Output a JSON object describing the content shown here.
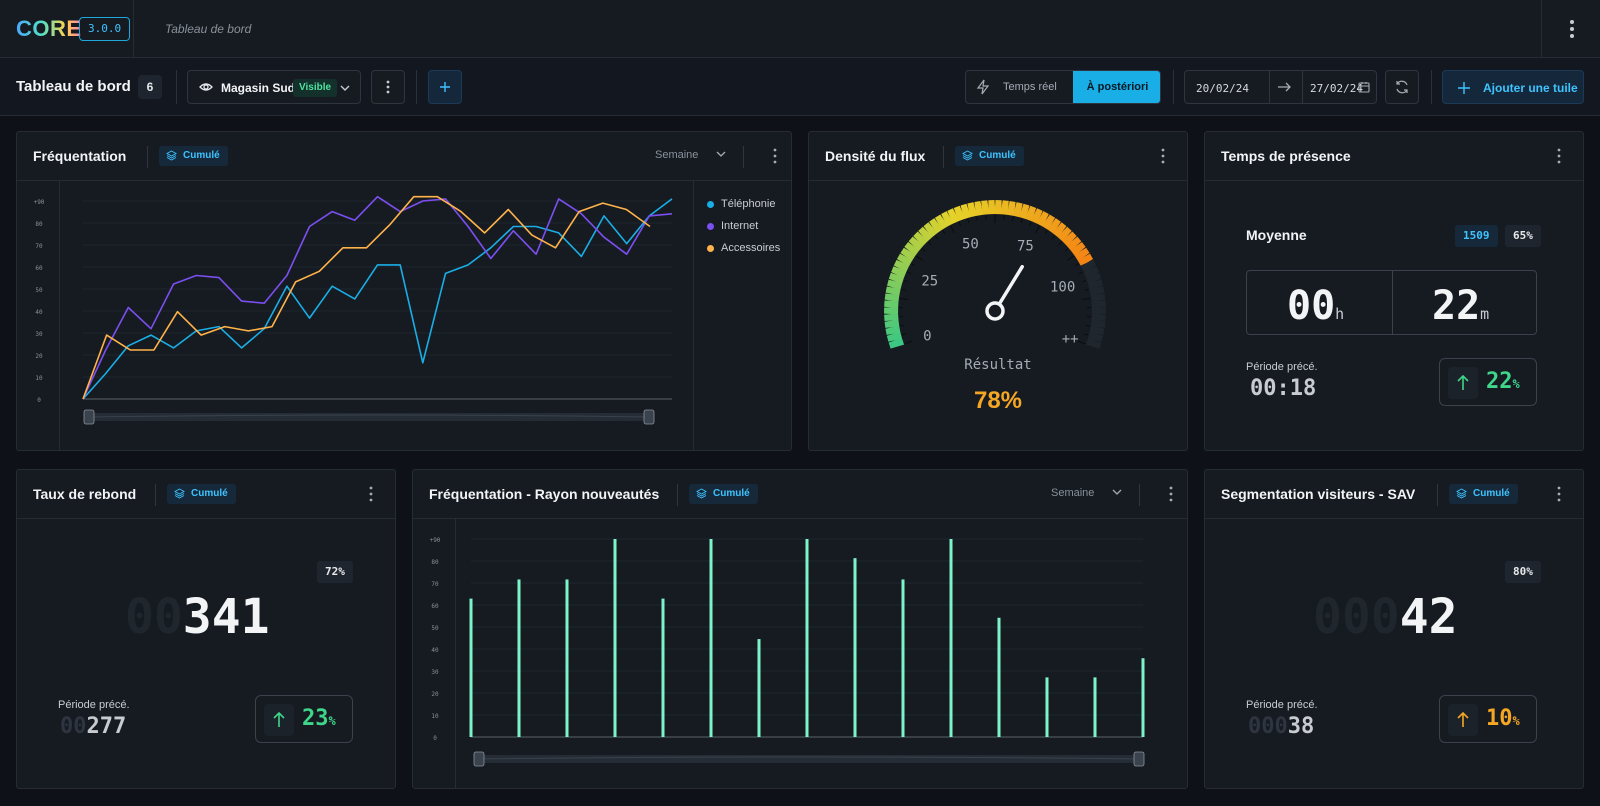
{
  "app": {
    "logo": "CORE",
    "version": "3.0.0",
    "breadcrumb": "Tableau de bord"
  },
  "toolbar": {
    "title": "Tableau de bord",
    "tile_count": "6",
    "view_name": "Magasin Sud",
    "view_status": "Visible",
    "mode_realtime": "Temps réel",
    "mode_posteriori": "À postériori",
    "date_from": "20/02/24",
    "date_to": "27/02/24",
    "add_tile": "Ajouter une tuile"
  },
  "colors": {
    "telephonie": "#1aaee6",
    "internet": "#7b4ff0",
    "accessoires": "#ffb34a",
    "bars": "#7ff3c8",
    "accent": "#1aaee6"
  },
  "frequentation": {
    "title": "Fréquentation",
    "badge": "Cumulé",
    "period": "Semaine",
    "legend": [
      "Téléphonie",
      "Internet",
      "Accessoires"
    ]
  },
  "densite": {
    "title": "Densité du flux",
    "badge": "Cumulé",
    "ticks": [
      "0",
      "25",
      "50",
      "75",
      "100",
      "++"
    ],
    "result_label": "Résultat",
    "result_value": "78%"
  },
  "presence": {
    "title": "Temps de présence",
    "label": "Moyenne",
    "chip_count": "1509",
    "chip_pct": "65%",
    "hours": "00",
    "hours_unit": "h",
    "minutes": "22",
    "minutes_unit": "m",
    "prev_label": "Période précé.",
    "prev_value": "00:18",
    "trend": "22",
    "trend_unit": "%"
  },
  "rebond": {
    "title": "Taux de rebond",
    "badge": "Cumulé",
    "pct_chip": "72%",
    "value_pad": "00",
    "value": "341",
    "prev_label": "Période précé.",
    "prev_pad": "00",
    "prev_value": "277",
    "trend": "23",
    "trend_unit": "%"
  },
  "rayon": {
    "title": "Fréquentation - Rayon nouveautés",
    "badge": "Cumulé",
    "period": "Semaine"
  },
  "segmentation": {
    "title": "Segmentation visiteurs - SAV",
    "badge": "Cumulé",
    "pct_chip": "80%",
    "value_pad": "000",
    "value": "42",
    "prev_label": "Période précé.",
    "prev_pad": "000",
    "prev_value": "38",
    "trend": "10",
    "trend_unit": "%"
  },
  "chart_data": [
    {
      "type": "line",
      "yticks": [
        "+90",
        "80",
        "70",
        "60",
        "50",
        "40",
        "30",
        "20",
        "10",
        "0"
      ],
      "ylim": [
        0,
        93
      ],
      "legend_position": "right",
      "series": [
        {
          "name": "Téléphonie",
          "values": [
            0,
            12,
            25,
            30,
            24,
            32,
            34,
            24,
            33,
            53,
            38,
            53,
            47,
            63,
            63,
            17,
            59,
            63,
            71,
            81,
            81,
            78,
            67,
            86,
            73,
            86,
            94
          ]
        },
        {
          "name": "Internet",
          "values": [
            0,
            23,
            43,
            33,
            54,
            58,
            57,
            46,
            45,
            58,
            81,
            88,
            84,
            95,
            88,
            93,
            94,
            81,
            66,
            79,
            68,
            94,
            87,
            76,
            68,
            86,
            87
          ]
        },
        {
          "name": "Accessoires",
          "values": [
            0,
            30,
            23,
            23,
            41,
            30,
            34,
            32,
            34,
            55,
            60,
            71,
            71,
            82,
            95,
            95,
            88,
            78,
            89,
            77,
            71,
            88,
            92,
            89,
            81
          ]
        }
      ]
    },
    {
      "type": "gauge",
      "range": [
        0,
        100
      ],
      "value": 78,
      "ticks": [
        "0",
        "25",
        "50",
        "75",
        "100",
        "++"
      ]
    },
    {
      "type": "bar",
      "yticks": [
        "+90",
        "80",
        "70",
        "60",
        "50",
        "40",
        "30",
        "20",
        "10",
        "0"
      ],
      "ylim": [
        0,
        93
      ],
      "values": [
        65,
        74,
        74,
        93,
        65,
        93,
        46,
        93,
        84,
        74,
        93,
        56,
        28,
        28,
        37
      ]
    }
  ]
}
